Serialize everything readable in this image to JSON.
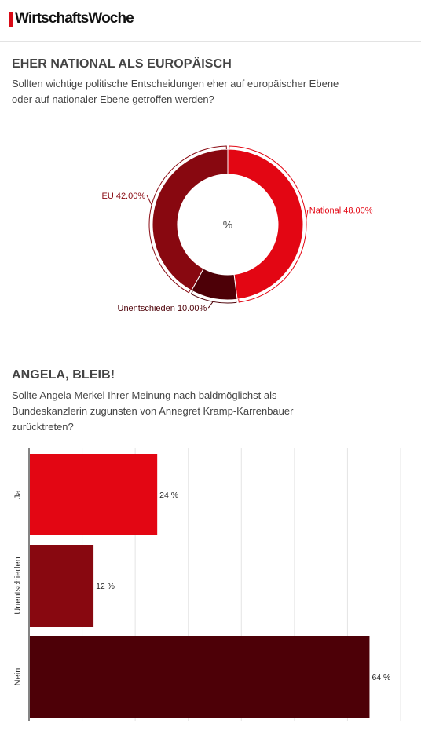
{
  "header": {
    "logo_text": "WirtschaftsWoche"
  },
  "section1": {
    "title": "EHER NATIONAL ALS EUROPÄISCH",
    "subtitle": "Sollten wichtige politische Entscheidungen eher auf europäischer Ebene oder auf nationaler Ebene getroffen werden?"
  },
  "section2": {
    "title": "ANGELA, BLEIB!",
    "subtitle": "Sollte Angela Merkel Ihrer Meinung nach baldmöglichst als Bundeskanzlerin zugunsten von Annegret Kramp-Karrenbauer zurücktreten?"
  },
  "chart_data": [
    {
      "type": "pie",
      "variant": "donut",
      "center_label": "%",
      "slices": [
        {
          "label": "National",
          "value": 48.0,
          "display": "National 48.00%",
          "color": "#e30613"
        },
        {
          "label": "Unentschieden",
          "value": 10.0,
          "display": "Unentschieden 10.00%",
          "color": "#4d0007"
        },
        {
          "label": "EU",
          "value": 42.0,
          "display": "EU 42.00%",
          "color": "#880810"
        }
      ]
    },
    {
      "type": "bar",
      "orientation": "horizontal",
      "categories": [
        "Ja",
        "Unentschieden",
        "Nein"
      ],
      "values": [
        24,
        12,
        64
      ],
      "value_labels": [
        "24 %",
        "12 %",
        "64 %"
      ],
      "colors": [
        "#e30613",
        "#880810",
        "#4d0007"
      ],
      "xlim": [
        0,
        70
      ],
      "grid": true
    }
  ]
}
